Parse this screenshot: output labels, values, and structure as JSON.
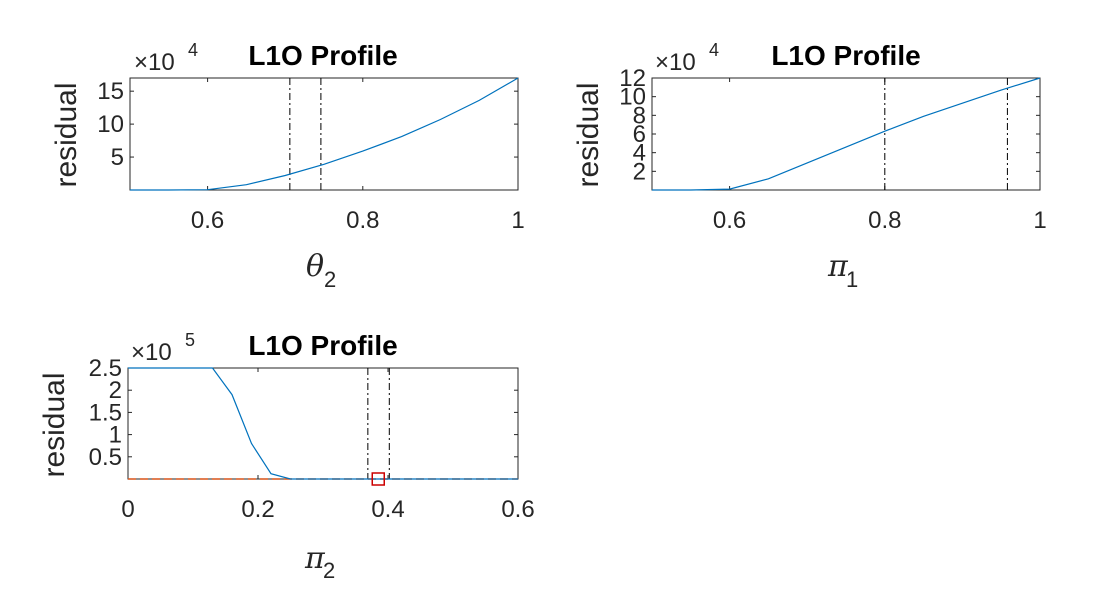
{
  "chart_data": [
    {
      "type": "line",
      "title": "L1O Profile",
      "ylabel": "residual",
      "xlabel": {
        "symbol": "θ",
        "subscript": "2"
      },
      "y_exponent": {
        "base": "×10",
        "power": "4"
      },
      "xlim": [
        0.5,
        1.0
      ],
      "ylim": [
        0,
        17
      ],
      "xticks": [
        0.6,
        0.8,
        1.0
      ],
      "xtick_labels": [
        "0.6",
        "0.8",
        "1"
      ],
      "yticks": [
        5,
        10,
        15
      ],
      "ytick_labels": [
        "5",
        "10",
        "15"
      ],
      "series": [
        {
          "color": "#0072BD",
          "x": [
            0.5,
            0.55,
            0.6,
            0.65,
            0.7,
            0.75,
            0.8,
            0.85,
            0.9,
            0.95,
            1.0
          ],
          "y": [
            0,
            0,
            0.05,
            0.8,
            2.2,
            3.9,
            5.9,
            8.1,
            10.7,
            13.6,
            17.0
          ]
        }
      ],
      "vlines": [
        0.706,
        0.746
      ]
    },
    {
      "type": "line",
      "title": "L1O Profile",
      "ylabel": "residual",
      "xlabel": {
        "symbol": "π",
        "subscript": "1"
      },
      "y_exponent": {
        "base": "×10",
        "power": "4"
      },
      "xlim": [
        0.5,
        1.0
      ],
      "ylim": [
        0,
        12
      ],
      "xticks": [
        0.6,
        0.8,
        1.0
      ],
      "xtick_labels": [
        "0.6",
        "0.8",
        "1"
      ],
      "yticks": [
        2,
        4,
        6,
        8,
        10,
        12
      ],
      "ytick_labels": [
        "2",
        "4",
        "6",
        "8",
        "10",
        "12"
      ],
      "series": [
        {
          "color": "#0072BD",
          "x": [
            0.5,
            0.55,
            0.6,
            0.65,
            0.7,
            0.75,
            0.8,
            0.85,
            0.9,
            0.95,
            1.0
          ],
          "y": [
            0,
            0,
            0.1,
            1.2,
            2.9,
            4.6,
            6.3,
            7.9,
            9.3,
            10.7,
            12.0
          ]
        }
      ],
      "vlines": [
        0.8,
        0.958
      ]
    },
    {
      "type": "line",
      "title": "L1O Profile",
      "ylabel": "residual",
      "xlabel": {
        "symbol": "π",
        "subscript": "2"
      },
      "y_exponent": {
        "base": "×10",
        "power": "5"
      },
      "xlim": [
        0,
        0.6
      ],
      "ylim": [
        0,
        2.5
      ],
      "xticks": [
        0,
        0.2,
        0.4,
        0.6
      ],
      "xtick_labels": [
        "0",
        "0.2",
        "0.4",
        "0.6"
      ],
      "yticks": [
        0.5,
        1,
        1.5,
        2,
        2.5
      ],
      "ytick_labels": [
        "0.5",
        "1",
        "1.5",
        "2",
        "2.5"
      ],
      "series": [
        {
          "color": "#0072BD",
          "x": [
            0,
            0.03,
            0.06,
            0.09,
            0.13,
            0.16,
            0.19,
            0.22,
            0.25,
            0.3,
            0.4,
            0.5,
            0.6
          ],
          "y": [
            2.5,
            2.5,
            2.5,
            2.5,
            2.5,
            1.9,
            0.8,
            0.12,
            0.0,
            0.0,
            0.0,
            0.0,
            0.0
          ]
        }
      ],
      "baseline": {
        "color": "#D95319",
        "y": 0
      },
      "vlines": [
        0.369,
        0.402
      ],
      "marker": {
        "x": 0.385,
        "y": 0,
        "shape": "square",
        "color": "#CC0000"
      }
    }
  ]
}
